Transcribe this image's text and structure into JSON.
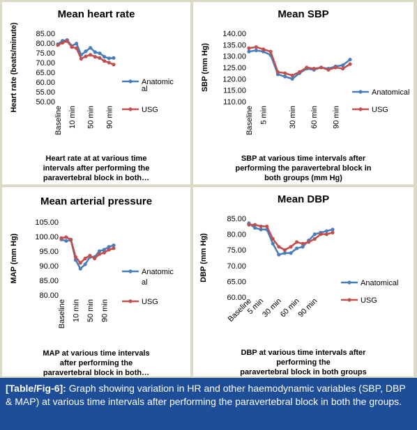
{
  "chart_data": [
    {
      "type": "line",
      "title": "Mean heart rate",
      "caption": [
        "Heart rate at at various time",
        "intervals after performing the",
        "paravertebral block in both…"
      ],
      "ylabel": "Heart rate (beats/minute)",
      "xlabel": "",
      "ylim": [
        50,
        85
      ],
      "ystep": 5,
      "yticks": [
        "50.00",
        "55.00",
        "60.00",
        "65.00",
        "70.00",
        "75.00",
        "80.00",
        "85.00"
      ],
      "x_tick_labels": [
        "Baseline",
        "10 min",
        "50 min",
        "90 min"
      ],
      "x_tick_index": [
        0,
        3,
        7,
        11
      ],
      "n_points": 13,
      "legend": [
        "Anatomic",
        "al",
        "USG"
      ],
      "grid": false,
      "legend_position": "right",
      "series": [
        {
          "name": "Anatomical",
          "color": "#4a7ebb",
          "values": [
            79.5,
            81.2,
            81.6,
            78.6,
            79.8,
            74.0,
            75.8,
            77.6,
            75.4,
            74.8,
            73.0,
            72.2,
            72.4
          ]
        },
        {
          "name": "USG",
          "color": "#c0504d",
          "values": [
            79.0,
            80.2,
            81.0,
            78.0,
            77.4,
            72.0,
            73.2,
            74.0,
            73.0,
            72.4,
            70.8,
            70.0,
            69.0
          ]
        }
      ]
    },
    {
      "type": "line",
      "title": "Mean SBP",
      "caption": [
        "SBP at various time intervals after",
        "performing the paravertebral block in",
        "both groups (mm Hg)"
      ],
      "ylabel": "SBP (mm Hg)",
      "xlabel": "",
      "ylim": [
        110,
        140
      ],
      "ystep": 5,
      "yticks": [
        "110.00",
        "115.00",
        "120.00",
        "125.00",
        "130.00",
        "135.00",
        "140.00"
      ],
      "x_tick_labels": [
        "Baseline",
        "5 min",
        "30 min",
        "60 min",
        "90 min"
      ],
      "x_tick_index": [
        0,
        2,
        6,
        9,
        12
      ],
      "n_points": 15,
      "legend": [
        "Anatomical",
        "USG"
      ],
      "grid": false,
      "legend_position": "right",
      "series": [
        {
          "name": "Anatomical",
          "color": "#4a7ebb",
          "values": [
            132.0,
            132.5,
            132.0,
            130.5,
            122.0,
            121.0,
            120.0,
            122.5,
            124.5,
            124.0,
            125.0,
            124.5,
            125.5,
            126.0,
            128.5
          ]
        },
        {
          "name": "USG",
          "color": "#c0504d",
          "values": [
            133.5,
            134.0,
            133.0,
            132.0,
            123.0,
            122.5,
            121.5,
            123.0,
            125.0,
            124.5,
            125.0,
            124.0,
            125.0,
            124.5,
            126.5
          ]
        }
      ]
    },
    {
      "type": "line",
      "title": "Mean arterial pressure",
      "caption": [
        "MAP at various time intervals",
        "after performing the",
        "paravertebral block in both…"
      ],
      "ylabel": "MAP (mm Hg)",
      "xlabel": "",
      "ylim": [
        80,
        105
      ],
      "ystep": 5,
      "yticks": [
        "80.00",
        "85.00",
        "90.00",
        "95.00",
        "100.00",
        "105.00"
      ],
      "x_tick_labels": [
        "Baseline",
        "10 min",
        "50 min",
        "90 min"
      ],
      "x_tick_index": [
        0,
        3,
        6,
        9
      ],
      "n_points": 12,
      "legend": [
        "Anatomic",
        "al",
        "USG"
      ],
      "grid": false,
      "legend_position": "right",
      "series": [
        {
          "name": "Anatomical",
          "color": "#4a7ebb",
          "values": [
            99.0,
            98.5,
            98.8,
            92.0,
            89.0,
            90.5,
            93.0,
            93.0,
            95.0,
            95.5,
            96.5,
            97.0
          ]
        },
        {
          "name": "USG",
          "color": "#c0504d",
          "values": [
            99.5,
            99.8,
            99.0,
            93.0,
            91.0,
            92.5,
            93.5,
            92.5,
            94.0,
            94.5,
            95.5,
            96.0
          ]
        }
      ]
    },
    {
      "type": "line",
      "title": "Mean DBP",
      "caption": [
        "DBP at various time intervals after",
        "performing the",
        "paravertebral block in both groups"
      ],
      "ylabel": "DBP (mm Hg)",
      "xlabel": "",
      "ylim": [
        60,
        85
      ],
      "ystep": 5,
      "yticks": [
        "60.00",
        "65.00",
        "70.00",
        "75.00",
        "80.00",
        "85.00"
      ],
      "x_tick_labels": [
        "Baseline",
        "5 min",
        "30 min",
        "60 min",
        "90 min"
      ],
      "x_tick_index": [
        0,
        2,
        5,
        8,
        11
      ],
      "n_points": 15,
      "legend": [
        "Anatomical",
        "USG"
      ],
      "grid": false,
      "legend_position": "right",
      "series": [
        {
          "name": "Anatomical",
          "color": "#4a7ebb",
          "values": [
            83.5,
            82.0,
            81.5,
            81.5,
            77.0,
            73.5,
            74.0,
            74.0,
            75.5,
            76.0,
            78.0,
            80.0,
            80.5,
            81.0,
            81.5
          ]
        },
        {
          "name": "USG",
          "color": "#c0504d",
          "values": [
            83.0,
            83.0,
            82.5,
            82.5,
            78.5,
            76.0,
            75.0,
            76.0,
            77.5,
            77.0,
            77.5,
            78.5,
            80.0,
            80.0,
            80.5
          ]
        }
      ]
    }
  ],
  "caption": {
    "label": "[Table/Fig-6]:",
    "text": " Graph showing variation in HR and other haemodynamic variables (SBP, DBP & MAP) at various time intervals after performing the paravertebral block in both the groups."
  }
}
